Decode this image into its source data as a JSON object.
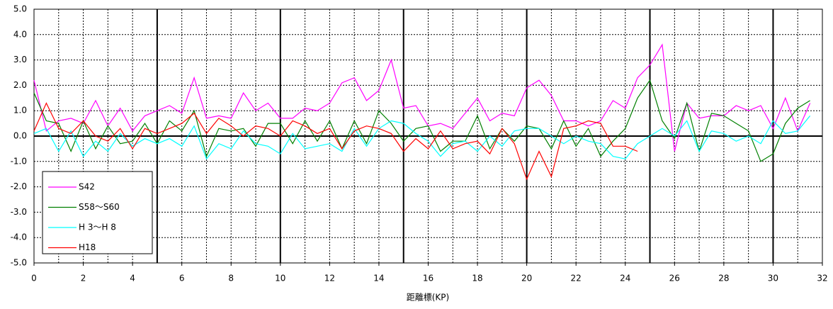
{
  "chart_data": {
    "type": "line",
    "xlabel": "距離標(KP)",
    "x": [
      0,
      0.5,
      1,
      1.5,
      2,
      2.5,
      3,
      3.5,
      4,
      4.5,
      5,
      5.5,
      6,
      6.5,
      7,
      7.5,
      8,
      8.5,
      9,
      9.5,
      10,
      10.5,
      11,
      11.5,
      12,
      12.5,
      13,
      13.5,
      14,
      14.5,
      15,
      15.5,
      16,
      16.5,
      17,
      17.5,
      18,
      18.5,
      19,
      19.5,
      20,
      20.5,
      21,
      21.5,
      22,
      22.5,
      23,
      23.5,
      24,
      24.5,
      25,
      25.5,
      26,
      26.5,
      27,
      27.5,
      28,
      28.5,
      29,
      29.5,
      30,
      30.5,
      31,
      31.5
    ],
    "series": [
      {
        "name": "S42",
        "color": "#ff00ff",
        "values": [
          2.2,
          0.2,
          0.6,
          0.7,
          0.5,
          1.4,
          0.4,
          1.1,
          0.2,
          0.8,
          1.0,
          1.2,
          0.9,
          2.3,
          0.7,
          0.8,
          0.7,
          1.7,
          1.0,
          1.3,
          0.7,
          0.7,
          1.1,
          1.0,
          1.3,
          2.1,
          2.3,
          1.4,
          1.8,
          3.0,
          1.1,
          1.2,
          0.4,
          0.5,
          0.3,
          0.9,
          1.5,
          0.6,
          0.9,
          0.8,
          1.9,
          2.2,
          1.6,
          0.6,
          0.6,
          0.4,
          0.6,
          1.4,
          1.1,
          2.3,
          2.8,
          3.6,
          -0.6,
          1.3,
          0.7,
          0.8,
          0.8,
          1.2,
          1.0,
          1.2,
          0.3,
          1.5,
          0.2,
          1.3
        ]
      },
      {
        "name": "S58～S60",
        "color": "#008000",
        "values": [
          1.7,
          0.6,
          0.5,
          -0.6,
          0.6,
          -0.5,
          0.4,
          -0.3,
          -0.2,
          0.5,
          -0.3,
          0.6,
          0.2,
          1.0,
          -0.8,
          0.3,
          0.2,
          0.3,
          -0.4,
          0.5,
          0.5,
          -0.3,
          0.6,
          -0.2,
          0.6,
          -0.5,
          0.6,
          -0.3,
          1.0,
          0.5,
          -0.2,
          0.3,
          0.4,
          -0.6,
          -0.2,
          -0.2,
          0.8,
          -0.5,
          0.3,
          -0.2,
          0.4,
          0.3,
          -0.5,
          0.6,
          -0.4,
          0.3,
          -0.8,
          -0.2,
          0.3,
          1.5,
          2.2,
          0.6,
          -0.1,
          1.3,
          -0.6,
          0.9,
          0.8,
          0.5,
          0.2,
          -1.0,
          -0.7,
          0.5,
          1.1,
          1.4
        ]
      },
      {
        "name": "H 3～H 8",
        "color": "#00ffff",
        "values": [
          0.1,
          0.3,
          -0.6,
          0.2,
          -0.8,
          -0.2,
          -0.6,
          0.1,
          -0.4,
          -0.1,
          -0.3,
          -0.1,
          -0.4,
          0.4,
          -0.9,
          -0.3,
          -0.5,
          0.2,
          -0.3,
          -0.4,
          -0.7,
          0.1,
          -0.5,
          -0.4,
          -0.3,
          -0.6,
          0.3,
          -0.4,
          0.3,
          0.6,
          0.5,
          0.1,
          -0.2,
          -0.8,
          -0.3,
          -0.2,
          -0.6,
          0.0,
          -0.4,
          0.2,
          0.3,
          0.3,
          0.0,
          -0.3,
          0.0,
          -0.2,
          -0.3,
          -0.8,
          -0.9,
          -0.3,
          0.0,
          0.3,
          0.0,
          0.6,
          -0.6,
          0.2,
          0.1,
          -0.2,
          0.0,
          -0.3,
          0.6,
          0.1,
          0.2,
          0.8
        ]
      },
      {
        "name": "H18",
        "color": "#ff0000",
        "values": [
          0.2,
          1.3,
          0.3,
          0.1,
          0.6,
          0.0,
          -0.2,
          0.3,
          -0.5,
          0.3,
          0.1,
          0.3,
          0.5,
          0.9,
          0.1,
          0.7,
          0.4,
          0.0,
          0.4,
          0.3,
          0.0,
          0.6,
          0.4,
          0.1,
          0.3,
          -0.5,
          0.2,
          0.4,
          0.3,
          0.1,
          -0.6,
          -0.1,
          -0.5,
          0.2,
          -0.5,
          -0.3,
          -0.2,
          -0.7,
          0.3,
          -0.3,
          -1.7,
          -0.6,
          -1.6,
          0.3,
          0.4,
          0.6,
          0.5,
          -0.4,
          -0.4,
          -0.6,
          null,
          null,
          null,
          null,
          null,
          null,
          null,
          null,
          null,
          null,
          null,
          null,
          null,
          null
        ]
      }
    ],
    "xlim": [
      0,
      32
    ],
    "xticks": [
      0,
      2,
      4,
      6,
      8,
      10,
      12,
      14,
      16,
      18,
      20,
      22,
      24,
      26,
      28,
      30,
      32
    ],
    "ylim": [
      -5,
      5
    ],
    "yticks": [
      {
        "value": -5,
        "label": "-5.0"
      },
      {
        "value": -4,
        "label": "-4.0"
      },
      {
        "value": -3,
        "label": "-3.0"
      },
      {
        "value": -2,
        "label": "-2.0"
      },
      {
        "value": -1,
        "label": "-1.0"
      },
      {
        "value": 0,
        "label": "0.0"
      },
      {
        "value": 1,
        "label": "1.0"
      },
      {
        "value": 2,
        "label": "2.0"
      },
      {
        "value": 3,
        "label": "3.0"
      },
      {
        "value": 4,
        "label": "4.0"
      },
      {
        "value": 5,
        "label": "5.0"
      }
    ],
    "xgrid": [
      1,
      2,
      3,
      4,
      6,
      7,
      8,
      9,
      11,
      12,
      13,
      14,
      16,
      17,
      18,
      19,
      21,
      22,
      23,
      24,
      26,
      27,
      28,
      29,
      31
    ],
    "xmajor_lines": [
      5,
      10,
      15,
      20,
      25,
      30
    ],
    "grid": true,
    "legend": "lower left"
  }
}
